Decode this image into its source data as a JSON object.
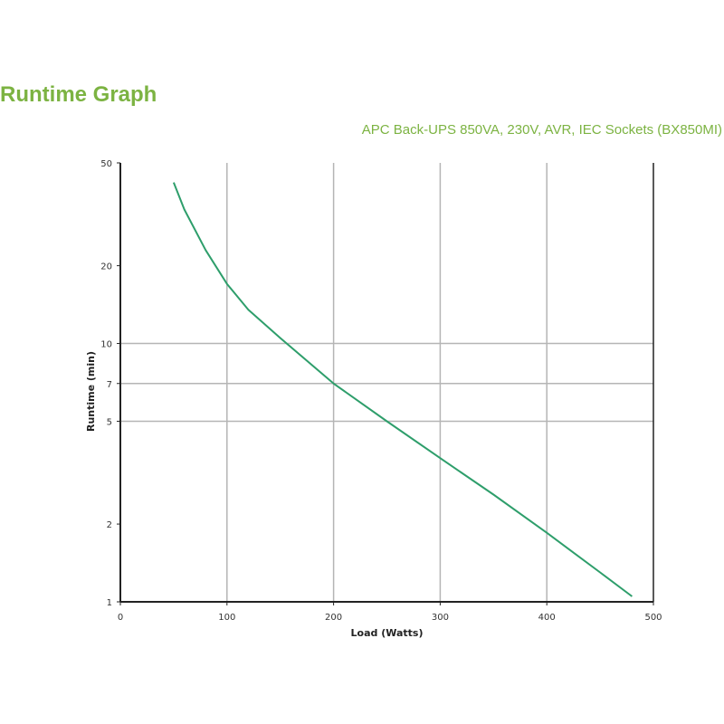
{
  "heading": "Runtime Graph",
  "subtitle": "APC Back-UPS 850VA, 230V, AVR, IEC Sockets (BX850MI)",
  "colors": {
    "heading": "#7cb342",
    "line": "#2e9e6b",
    "grid": "#b5b5b5",
    "axis": "#222222"
  },
  "chart_data": {
    "type": "line",
    "title": "APC Back-UPS 850VA, 230V, AVR, IEC Sockets (BX850MI)",
    "xlabel": "Load (Watts)",
    "ylabel": "Runtime (min)",
    "xlim": [
      0,
      500
    ],
    "ylim": [
      1,
      50
    ],
    "y_scale": "log",
    "grid": true,
    "x_ticks": [
      "0",
      "100",
      "200",
      "300",
      "400",
      "500"
    ],
    "y_ticks": [
      "1",
      "2",
      "5",
      "7",
      "10",
      "20",
      "50"
    ],
    "series": [
      {
        "x": [
          50,
          60,
          80,
          100,
          120,
          150,
          200,
          250,
          300,
          350,
          400,
          450,
          480
        ],
        "y": [
          42,
          33,
          23,
          17,
          13.5,
          10.5,
          7.0,
          5.0,
          3.6,
          2.6,
          1.85,
          1.3,
          1.05
        ]
      }
    ]
  }
}
